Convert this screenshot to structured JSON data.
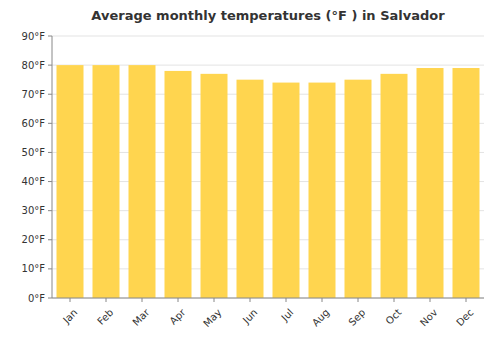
{
  "chart_data": {
    "type": "bar",
    "title": "Average monthly temperatures (°F ) in Salvador",
    "categories": [
      "Jan",
      "Feb",
      "Mar",
      "Apr",
      "May",
      "Jun",
      "Jul",
      "Aug",
      "Sep",
      "Oct",
      "Nov",
      "Dec"
    ],
    "values": [
      80,
      80,
      80,
      78,
      77,
      75,
      74,
      74,
      75,
      77,
      79,
      79
    ],
    "color": "#FFD54F",
    "ylim": [
      0,
      90
    ],
    "yticks": [
      {
        "value": 0,
        "label": "0°F"
      },
      {
        "value": 10,
        "label": "10°F"
      },
      {
        "value": 20,
        "label": "20°F"
      },
      {
        "value": 30,
        "label": "30°F"
      },
      {
        "value": 40,
        "label": "40°F"
      },
      {
        "value": 50,
        "label": "50°F"
      },
      {
        "value": 60,
        "label": "60°F"
      },
      {
        "value": 70,
        "label": "70°F"
      },
      {
        "value": 80,
        "label": "80°F"
      },
      {
        "value": 90,
        "label": "90°F"
      }
    ],
    "grid": true
  }
}
